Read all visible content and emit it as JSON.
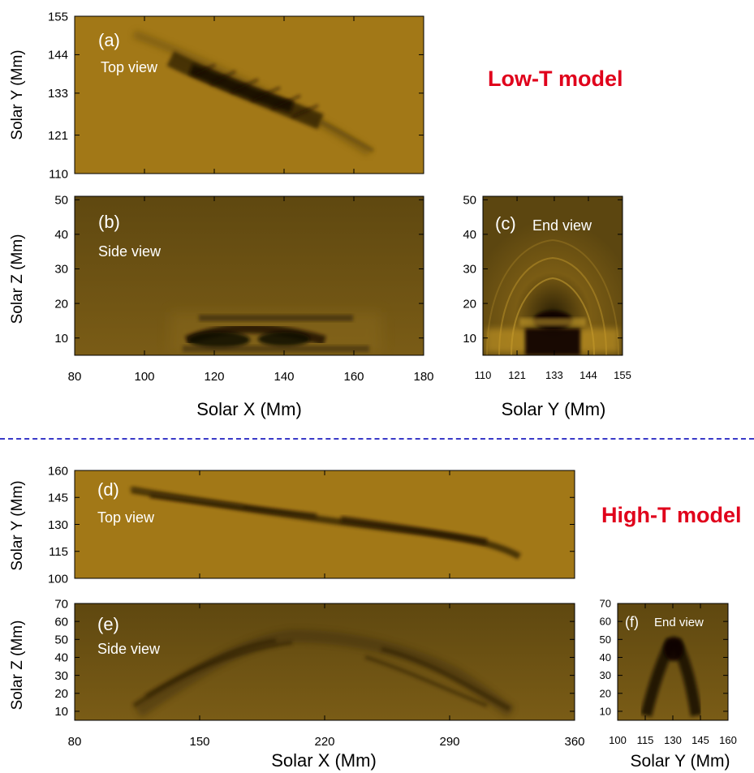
{
  "models": {
    "low_label": "Low-T model",
    "high_label": "High-T model"
  },
  "colors": {
    "bright_bg": "#a27817",
    "dark_bg": "#6f5412",
    "model_label": "#e0001b",
    "separator": "#3a3ac8",
    "overlay_text": "#ffffff"
  },
  "panels": {
    "a": {
      "letter": "(a)",
      "view": "Top view",
      "xlim": [
        80,
        180
      ],
      "ylim": [
        110,
        155
      ],
      "yticks": [
        "155",
        "144",
        "133",
        "121",
        "110"
      ],
      "ylabel": "Solar Y (Mm)"
    },
    "b": {
      "letter": "(b)",
      "view": "Side view",
      "xlim": [
        80,
        180
      ],
      "ylim": [
        5,
        51
      ],
      "xticks": [
        "80",
        "100",
        "120",
        "140",
        "160",
        "180"
      ],
      "yticks": [
        "50",
        "40",
        "30",
        "20",
        "10"
      ],
      "xlabel": "Solar X (Mm)",
      "ylabel": "Solar Z (Mm)"
    },
    "c": {
      "letter": "(c)",
      "view": "End view",
      "xlim": [
        110,
        155
      ],
      "ylim": [
        5,
        51
      ],
      "xticks": [
        "110",
        "121",
        "133",
        "144",
        "155"
      ],
      "yticks": [
        "50",
        "40",
        "30",
        "20",
        "10"
      ],
      "xlabel": "Solar Y (Mm)"
    },
    "d": {
      "letter": "(d)",
      "view": "Top view",
      "xlim": [
        80,
        360
      ],
      "ylim": [
        100,
        160
      ],
      "yticks": [
        "160",
        "145",
        "130",
        "115",
        "100"
      ],
      "ylabel": "Solar Y (Mm)"
    },
    "e": {
      "letter": "(e)",
      "view": "Side view",
      "xlim": [
        80,
        360
      ],
      "ylim": [
        5,
        70
      ],
      "xticks": [
        "80",
        "150",
        "220",
        "290",
        "360"
      ],
      "yticks": [
        "70",
        "60",
        "50",
        "40",
        "30",
        "20",
        "10"
      ],
      "xlabel": "Solar X (Mm)",
      "ylabel": "Solar Z (Mm)"
    },
    "f": {
      "letter": "(f)",
      "view": "End view",
      "xlim": [
        100,
        160
      ],
      "ylim": [
        5,
        70
      ],
      "xticks": [
        "100",
        "115",
        "130",
        "145",
        "160"
      ],
      "yticks": [
        "70",
        "60",
        "50",
        "40",
        "30",
        "20",
        "10"
      ],
      "xlabel": "Solar Y (Mm)"
    }
  }
}
